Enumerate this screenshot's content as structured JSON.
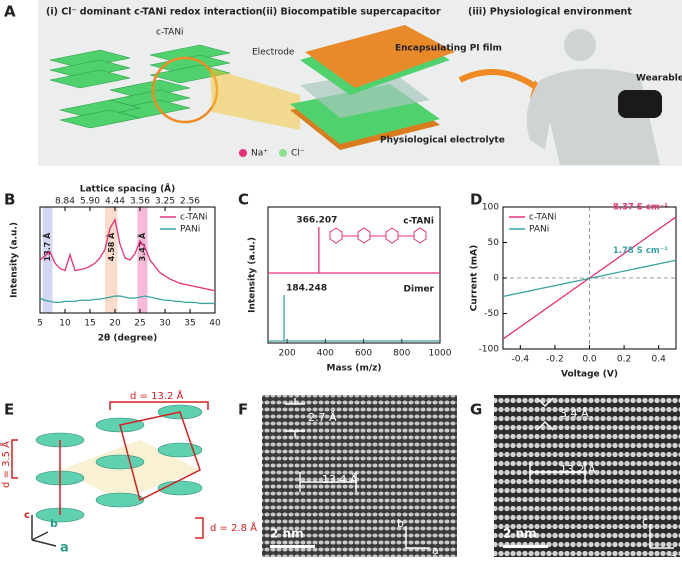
{
  "panel_labels": [
    "A",
    "B",
    "C",
    "D",
    "E",
    "F",
    "G"
  ],
  "panel_a": {
    "section_titles": [
      "(i) Cl⁻ dominant c-TANi redox interaction",
      "(ii) Biocompatible supercapacitor",
      "(iii) Physiological environment"
    ],
    "labels": {
      "c_tani": "c-TANi",
      "electrode": "Electrode",
      "pi_film": "Encapsulating PI film",
      "electrolyte": "Physiological electrolyte",
      "wearable": "Wearable devices",
      "na": "Na⁺",
      "cl": "Cl⁻"
    }
  },
  "chart_data": [
    {
      "type": "line",
      "xlabel": "2θ (degree)",
      "ylabel": "Intensity (a.u.)",
      "top_xlabel": "Lattice spacing (Å)",
      "xlim": [
        5,
        40
      ],
      "xticks": [
        5,
        10,
        15,
        20,
        25,
        30,
        35,
        40
      ],
      "top_xticks": [
        {
          "value": 10,
          "label": "8.84"
        },
        {
          "value": 15,
          "label": "5.90"
        },
        {
          "value": 20,
          "label": "4.44"
        },
        {
          "value": 25,
          "label": "3.56"
        },
        {
          "value": 30,
          "label": "3.25"
        },
        {
          "value": 35,
          "label": "2.56"
        }
      ],
      "ylim": [
        0,
        100
      ],
      "legend": "upper right",
      "bands": [
        {
          "range": [
            5.5,
            7.5
          ],
          "label": "13.7 Å",
          "color": "#c9cdf0"
        },
        {
          "range": [
            18,
            20.5
          ],
          "label": "4.58 Å",
          "color": "#f8d3bf"
        },
        {
          "range": [
            24.5,
            26.5
          ],
          "label": "3.47 Å",
          "color": "#f5a9cf"
        }
      ],
      "x": [
        5,
        6,
        7,
        8,
        9,
        10,
        11,
        12,
        13,
        14,
        15,
        16,
        17,
        18,
        19,
        20,
        21,
        22,
        23,
        24,
        25,
        26,
        27,
        28,
        29,
        30,
        31,
        32,
        33,
        34,
        35,
        36,
        37,
        38,
        39,
        40
      ],
      "series": [
        {
          "name": "c-TANi",
          "color": "#e8317a",
          "values": [
            50,
            54,
            58,
            47,
            42,
            40,
            55,
            40,
            41,
            42,
            44,
            47,
            52,
            60,
            80,
            88,
            65,
            52,
            50,
            56,
            68,
            62,
            50,
            44,
            38,
            35,
            32,
            30,
            28,
            27,
            26,
            25,
            24,
            23,
            22,
            21
          ]
        },
        {
          "name": "PANi",
          "color": "#3aa3a3",
          "values": [
            14,
            12,
            11,
            10,
            10,
            11,
            11,
            11,
            12,
            12,
            12,
            13,
            13,
            14,
            15,
            16,
            16,
            15,
            14,
            14,
            15,
            16,
            15,
            14,
            13,
            12,
            12,
            11,
            11,
            10,
            10,
            10,
            9,
            9,
            9,
            9
          ]
        }
      ]
    },
    {
      "type": "spectrum",
      "xlabel": "Mass (m/z)",
      "ylabel": "Intensity (a.u.)",
      "xlim": [
        100,
        1000
      ],
      "xticks": [
        200,
        400,
        600,
        800,
        1000
      ],
      "ylim": [
        0,
        100
      ],
      "legend": "row",
      "series": [
        {
          "name": "c-TANi",
          "color": "#e8317a",
          "x": [
            366.207
          ],
          "values": [
            100
          ]
        },
        {
          "name": "Dimer",
          "color": "#3aa3a3",
          "x": [
            184.248
          ],
          "values": [
            100
          ]
        }
      ]
    },
    {
      "type": "line",
      "xlabel": "Voltage (V)",
      "ylabel": "Current (mA)",
      "xlim": [
        -0.5,
        0.5
      ],
      "xticks": [
        -0.4,
        -0.2,
        {
          "value": 0,
          "label": "0.0"
        },
        0.2,
        0.4
      ],
      "ylim": [
        -100,
        100
      ],
      "yticks": [
        -100,
        -50,
        0,
        50,
        100
      ],
      "legend": "upper left",
      "zero_lines": true,
      "x": [
        -0.5,
        0.5
      ],
      "series": [
        {
          "name": "c-TANi",
          "color": "#e8317a",
          "values": [
            -86,
            86
          ]
        },
        {
          "name": "PANi",
          "color": "#3aa3a3",
          "values": [
            -26,
            25
          ]
        }
      ],
      "annotations": [
        "8.37 S cm⁻¹",
        "1.78 S cm⁻¹"
      ]
    }
  ],
  "panel_e": {
    "labels": [
      "d = 13.2 Å",
      "d = 3.5 Å",
      "d = 2.8 Å"
    ],
    "axes": [
      "c",
      "b",
      "a"
    ]
  },
  "panel_f": {
    "spacings": [
      "2.7 Å",
      "13.4 Å"
    ],
    "scale_bar": "2 nm",
    "axes": [
      "b",
      "a"
    ]
  },
  "panel_g": {
    "spacings": [
      "3.4 Å",
      "13.2 Å"
    ],
    "scale_bar": "2 nm",
    "axes": [
      "c",
      "a"
    ]
  }
}
